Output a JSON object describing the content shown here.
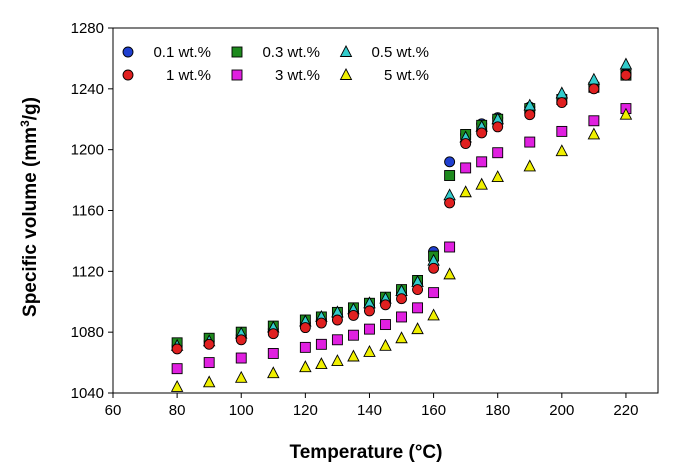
{
  "chart_data": {
    "type": "scatter",
    "title": "",
    "xlabel": "Temperature (°C)",
    "ylabel_main": "Specific volume (mm",
    "ylabel_sup": "3",
    "ylabel_tail": "/g)",
    "xlim": [
      60,
      230
    ],
    "ylim": [
      1040,
      1280
    ],
    "xticks": [
      60,
      80,
      100,
      120,
      140,
      160,
      180,
      200,
      220
    ],
    "yticks": [
      1040,
      1080,
      1120,
      1160,
      1200,
      1240,
      1280
    ],
    "grid": false,
    "legend_position": "top-left",
    "series": [
      {
        "name": "0.1 wt.%",
        "marker": "circle",
        "color": "#1f3fcf",
        "x": [
          80,
          90,
          100,
          110,
          120,
          125,
          130,
          135,
          140,
          145,
          150,
          155,
          160,
          165,
          170,
          175,
          180,
          190,
          200,
          210,
          220
        ],
        "y": [
          1071,
          1074,
          1078,
          1082,
          1086,
          1088,
          1091,
          1093,
          1097,
          1101,
          1105,
          1112,
          1133,
          1192,
          1210,
          1217,
          1221,
          1228,
          1234,
          1242,
          1250
        ]
      },
      {
        "name": "0.3 wt.%",
        "marker": "square",
        "color": "#1e8a1e",
        "x": [
          80,
          90,
          100,
          110,
          120,
          125,
          130,
          135,
          140,
          145,
          150,
          155,
          160,
          165,
          170,
          175,
          180,
          190,
          200,
          210,
          220
        ],
        "y": [
          1073,
          1076,
          1080,
          1084,
          1088,
          1090,
          1093,
          1096,
          1099,
          1103,
          1108,
          1114,
          1130,
          1183,
          1210,
          1216,
          1220,
          1227,
          1233,
          1241,
          1249
        ]
      },
      {
        "name": "0.5 wt.%",
        "marker": "triangle",
        "color": "#33cccc",
        "x": [
          80,
          90,
          100,
          110,
          120,
          125,
          130,
          135,
          140,
          145,
          150,
          155,
          160,
          165,
          170,
          175,
          180,
          190,
          200,
          210,
          220
        ],
        "y": [
          1071,
          1074,
          1079,
          1083,
          1087,
          1090,
          1093,
          1095,
          1099,
          1102,
          1107,
          1113,
          1127,
          1170,
          1208,
          1215,
          1220,
          1229,
          1237,
          1246,
          1256
        ]
      },
      {
        "name": "1 wt.%",
        "marker": "circle",
        "color": "#e02020",
        "x": [
          80,
          90,
          100,
          110,
          120,
          125,
          130,
          135,
          140,
          145,
          150,
          155,
          160,
          165,
          170,
          175,
          180,
          190,
          200,
          210,
          220
        ],
        "y": [
          1069,
          1072,
          1075,
          1079,
          1083,
          1086,
          1088,
          1091,
          1094,
          1098,
          1102,
          1108,
          1122,
          1165,
          1204,
          1211,
          1215,
          1223,
          1231,
          1240,
          1249
        ]
      },
      {
        "name": "3 wt.%",
        "marker": "square",
        "color": "#e020e0",
        "x": [
          80,
          90,
          100,
          110,
          120,
          125,
          130,
          135,
          140,
          145,
          150,
          155,
          160,
          165,
          170,
          175,
          180,
          190,
          200,
          210,
          220
        ],
        "y": [
          1056,
          1060,
          1063,
          1066,
          1070,
          1072,
          1075,
          1078,
          1082,
          1085,
          1090,
          1096,
          1106,
          1136,
          1188,
          1192,
          1198,
          1205,
          1212,
          1219,
          1227
        ]
      },
      {
        "name": "5 wt.%",
        "marker": "triangle",
        "color": "#f0f000",
        "x": [
          80,
          90,
          100,
          110,
          120,
          125,
          130,
          135,
          140,
          145,
          150,
          155,
          160,
          165,
          170,
          175,
          180,
          190,
          200,
          210,
          220
        ],
        "y": [
          1044,
          1047,
          1050,
          1053,
          1057,
          1059,
          1061,
          1064,
          1067,
          1071,
          1076,
          1082,
          1091,
          1118,
          1172,
          1177,
          1182,
          1189,
          1199,
          1210,
          1223
        ]
      }
    ]
  }
}
